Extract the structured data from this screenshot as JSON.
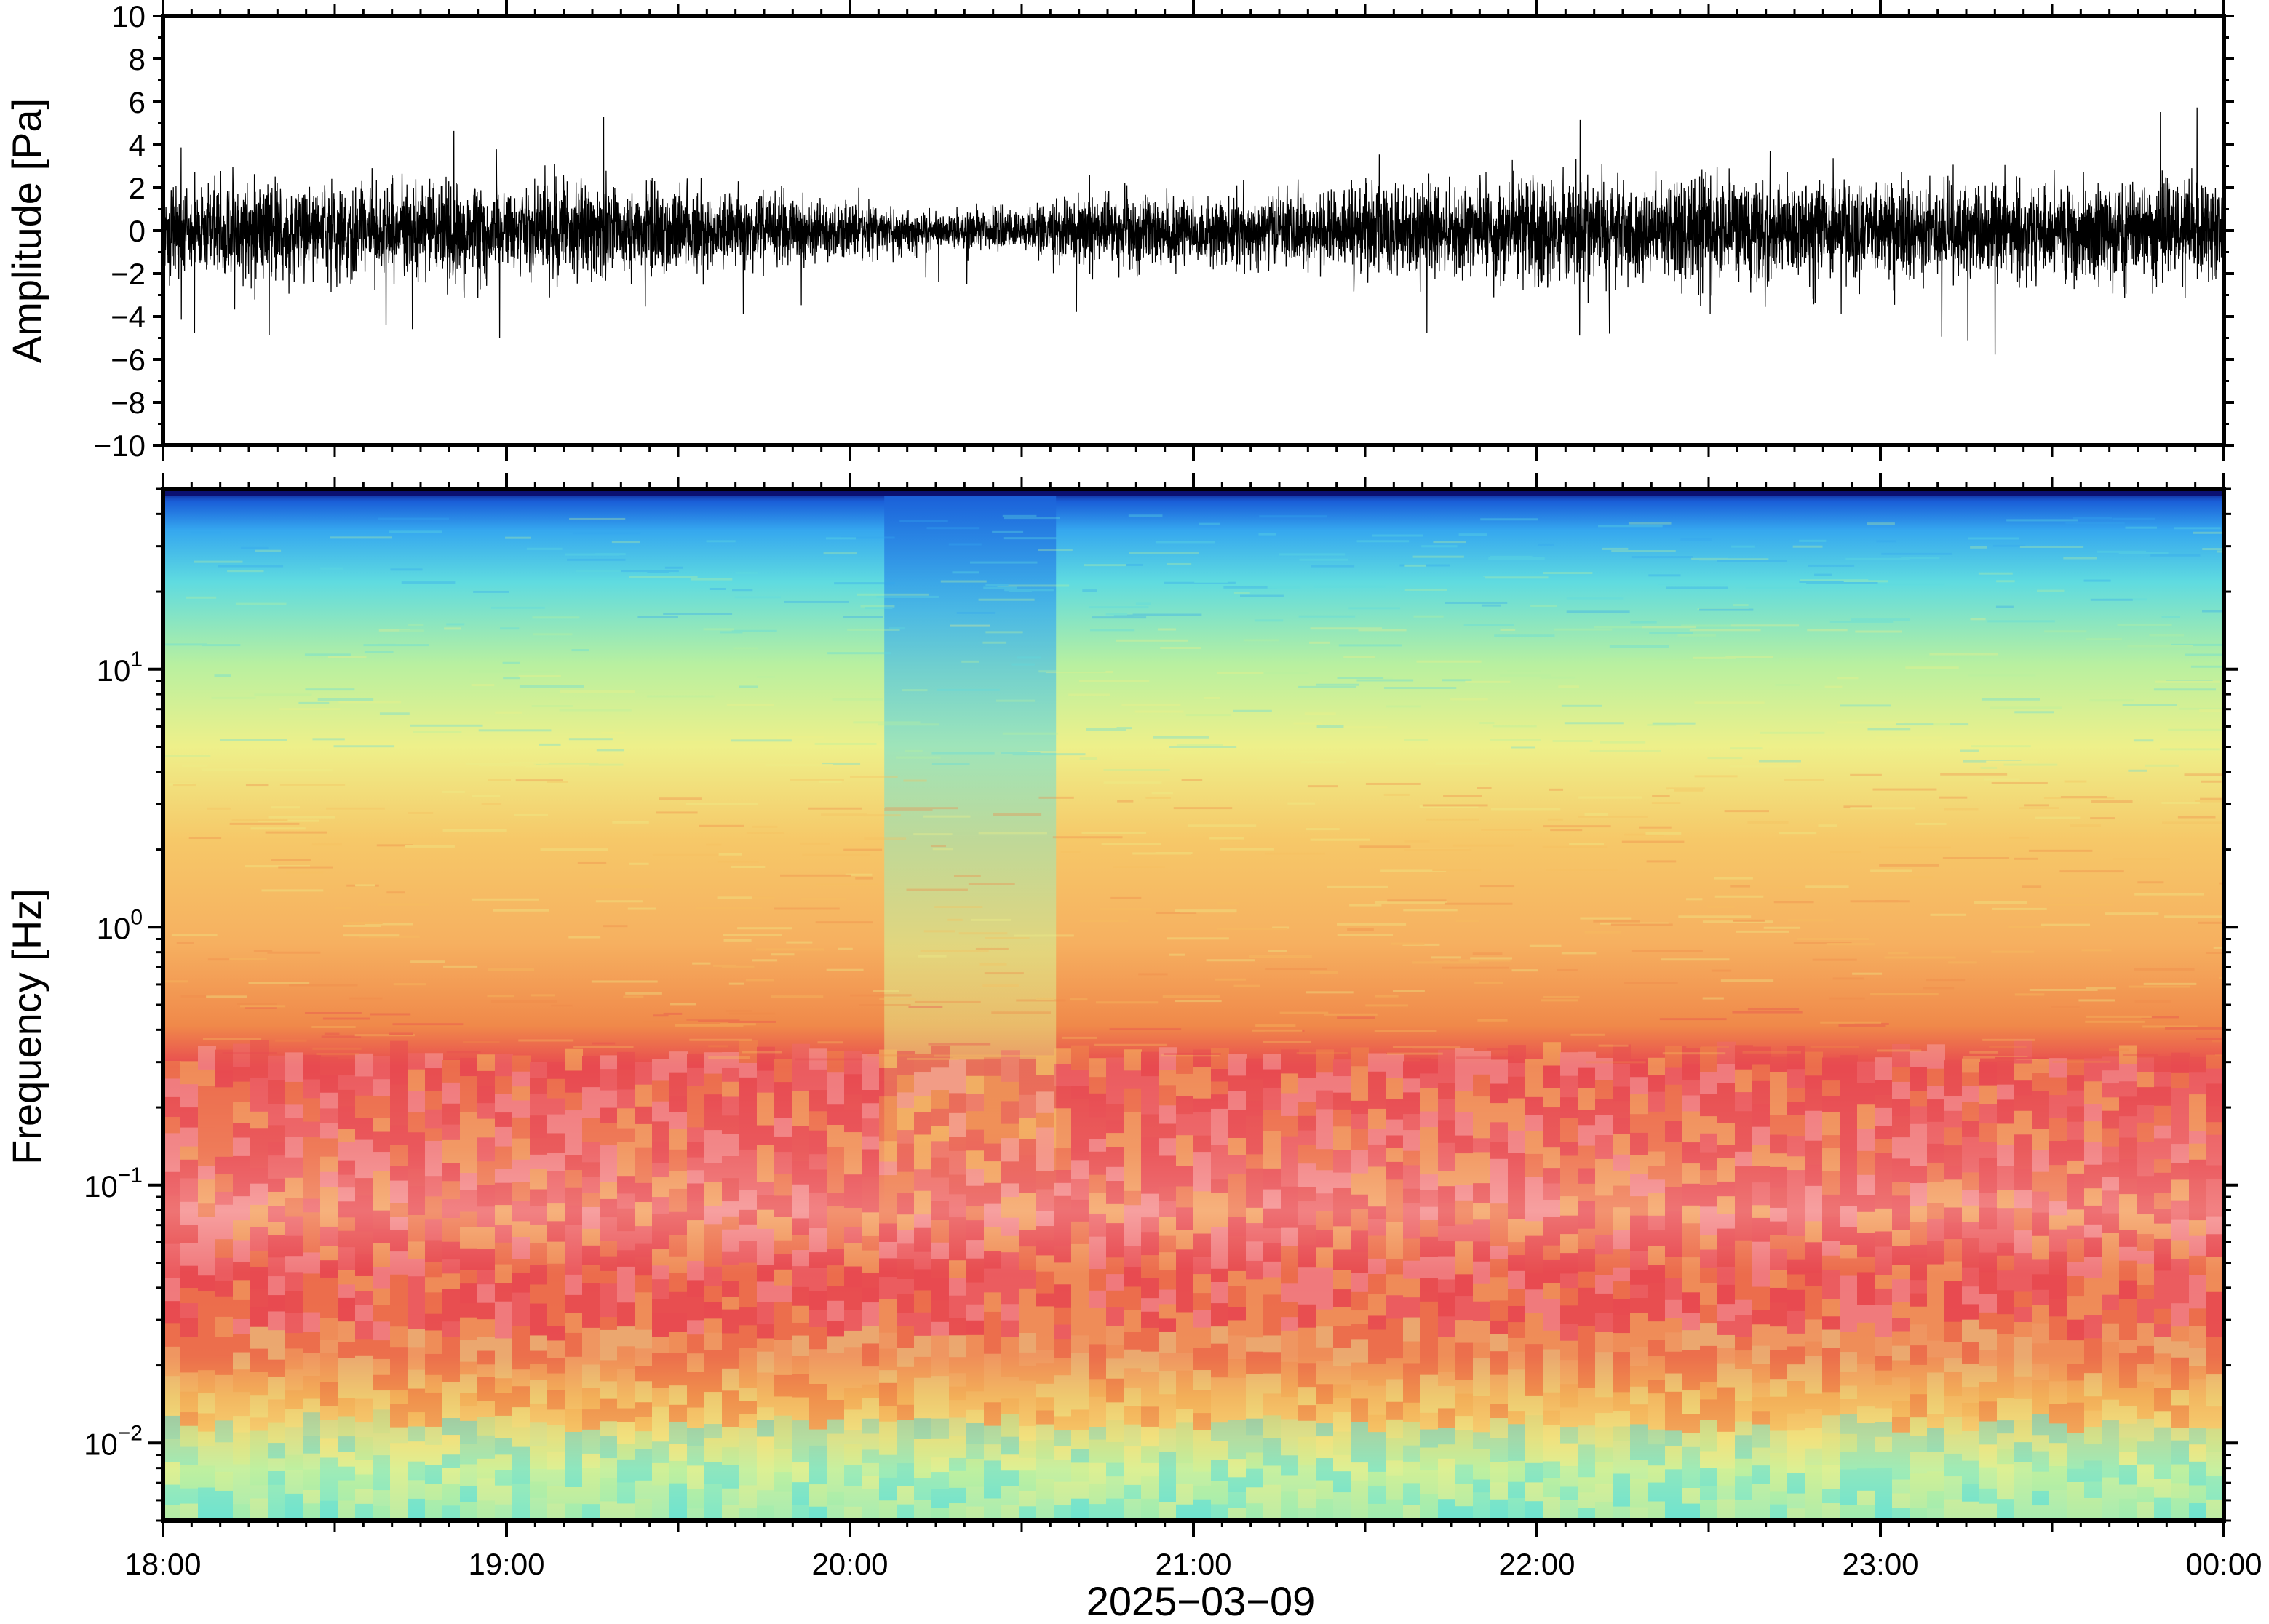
{
  "chart_data": [
    {
      "type": "line",
      "name": "waveform",
      "ylabel": "Amplitude [Pa]",
      "ylim": [
        -10,
        10
      ],
      "yticks": [
        "10",
        "8",
        "6",
        "4",
        "2",
        "0",
        "−2",
        "−4",
        "−6",
        "−8",
        "−10"
      ],
      "ytick_values": [
        10,
        8,
        6,
        4,
        2,
        0,
        -2,
        -4,
        -6,
        -8,
        -10
      ],
      "xlim_hours": [
        18,
        24
      ],
      "envelope": {
        "x_hours": [
          18.0,
          18.5,
          19.0,
          19.5,
          20.0,
          20.25,
          20.5,
          20.75,
          21.0,
          21.5,
          22.0,
          22.5,
          23.0,
          23.5,
          24.0
        ],
        "typical_amplitude_pa": [
          2.5,
          2.5,
          2.5,
          2.3,
          1.6,
          1.0,
          1.3,
          2.0,
          1.8,
          2.3,
          2.8,
          2.8,
          2.6,
          2.6,
          2.6
        ],
        "peak_amplitude_pa": [
          4.8,
          5.2,
          5.0,
          5.8,
          3.2,
          2.4,
          3.0,
          4.6,
          3.8,
          4.6,
          6.2,
          5.6,
          4.8,
          7.3,
          5.8
        ]
      }
    },
    {
      "type": "heatmap",
      "name": "spectrogram",
      "ylabel": "Frequency [Hz]",
      "yscale": "log",
      "ylim_hz": [
        0.005,
        50
      ],
      "yticks": [
        {
          "base": "10",
          "exp": "1",
          "value": 10
        },
        {
          "base": "10",
          "exp": "0",
          "value": 1
        },
        {
          "base": "10",
          "exp": "−1",
          "value": 0.1
        },
        {
          "base": "10",
          "exp": "−2",
          "value": 0.01
        }
      ],
      "colormap": "jet-like",
      "colors": [
        "#0a1070",
        "#1a5ed8",
        "#35a7ef",
        "#5fdbe0",
        "#b8f0a0",
        "#eef08a",
        "#f6c060",
        "#f0894a",
        "#e84a50",
        "#f7a0a0"
      ],
      "xlabel": "2025−03−09",
      "xticks": [
        "18:00",
        "19:00",
        "20:00",
        "21:00",
        "22:00",
        "23:00",
        "00:00"
      ],
      "xtick_hours": [
        18,
        19,
        20,
        21,
        22,
        23,
        24
      ],
      "bands": [
        {
          "f_low_hz": 0.005,
          "f_high_hz": 0.012,
          "level": "light green / cyan"
        },
        {
          "f_low_hz": 0.012,
          "f_high_hz": 0.025,
          "level": "yellow-orange"
        },
        {
          "f_low_hz": 0.025,
          "f_high_hz": 0.35,
          "level": "red / pink (highest)"
        },
        {
          "f_low_hz": 0.35,
          "f_high_hz": 8,
          "level": "orange / yellow"
        },
        {
          "f_low_hz": 8,
          "f_high_hz": 30,
          "level": "yellow-green to cyan"
        },
        {
          "f_low_hz": 30,
          "f_high_hz": 50,
          "level": "blue"
        }
      ],
      "quiet_interval_hours": [
        20.1,
        20.6
      ]
    }
  ]
}
